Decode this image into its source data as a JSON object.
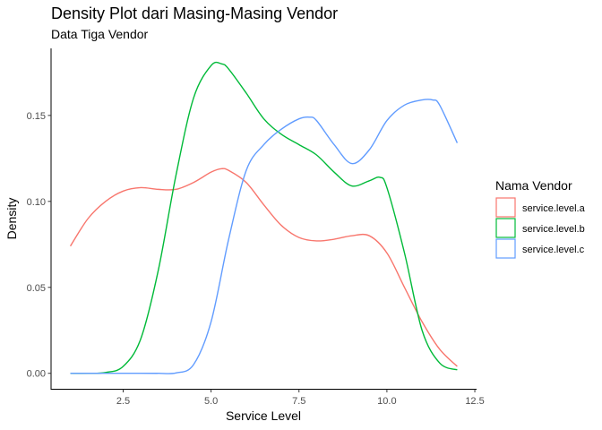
{
  "chart_data": {
    "type": "line",
    "title": "Density Plot dari Masing-Masing Vendor",
    "subtitle": "Data Tiga Vendor",
    "xlabel": "Service Level",
    "ylabel": "Density",
    "xlim": [
      0.45,
      12.55
    ],
    "ylim": [
      -0.009,
      0.189
    ],
    "x_ticks": [
      2.5,
      5.0,
      7.5,
      10.0,
      12.5
    ],
    "x_tick_labels": [
      "2.5",
      "5.0",
      "7.5",
      "10.0",
      "12.5"
    ],
    "y_ticks": [
      0.0,
      0.05,
      0.1,
      0.15
    ],
    "y_tick_labels": [
      "0.00",
      "0.05",
      "0.10",
      "0.15"
    ],
    "grid": false,
    "legend": {
      "title": "Nama Vendor",
      "placement": "right"
    },
    "series": [
      {
        "name": "service.level.a",
        "color": "#F8766D",
        "x": [
          1.0,
          1.5,
          2.0,
          2.5,
          3.0,
          3.5,
          4.0,
          4.5,
          5.0,
          5.3,
          5.5,
          6.0,
          6.5,
          7.0,
          7.5,
          8.0,
          8.5,
          9.0,
          9.5,
          10.0,
          10.5,
          11.0,
          11.5,
          12.0
        ],
        "y": [
          0.074,
          0.09,
          0.1,
          0.106,
          0.108,
          0.107,
          0.107,
          0.111,
          0.117,
          0.119,
          0.118,
          0.111,
          0.098,
          0.086,
          0.079,
          0.077,
          0.078,
          0.08,
          0.08,
          0.07,
          0.05,
          0.03,
          0.014,
          0.004
        ]
      },
      {
        "name": "service.level.b",
        "color": "#00BA38",
        "x": [
          1.0,
          1.5,
          2.0,
          2.5,
          3.0,
          3.5,
          4.0,
          4.5,
          5.0,
          5.3,
          5.5,
          6.0,
          6.5,
          7.0,
          7.5,
          8.0,
          8.5,
          9.0,
          9.5,
          9.8,
          10.0,
          10.5,
          11.0,
          11.5,
          12.0
        ],
        "y": [
          0.0,
          0.0,
          0.0005,
          0.004,
          0.02,
          0.06,
          0.115,
          0.16,
          0.179,
          0.18,
          0.177,
          0.163,
          0.148,
          0.139,
          0.133,
          0.127,
          0.117,
          0.109,
          0.112,
          0.114,
          0.108,
          0.07,
          0.025,
          0.006,
          0.002
        ]
      },
      {
        "name": "service.level.c",
        "color": "#619CFF",
        "x": [
          1.0,
          1.5,
          2.0,
          2.5,
          3.0,
          3.5,
          4.0,
          4.5,
          5.0,
          5.5,
          6.0,
          6.5,
          7.0,
          7.5,
          7.8,
          8.0,
          8.5,
          9.0,
          9.5,
          10.0,
          10.5,
          11.0,
          11.3,
          11.5,
          12.0
        ],
        "y": [
          0.0,
          0.0,
          0.0,
          0.0,
          0.0,
          0.0,
          0.0002,
          0.005,
          0.03,
          0.078,
          0.118,
          0.133,
          0.142,
          0.148,
          0.149,
          0.147,
          0.133,
          0.122,
          0.13,
          0.147,
          0.156,
          0.159,
          0.159,
          0.156,
          0.134
        ]
      }
    ]
  }
}
